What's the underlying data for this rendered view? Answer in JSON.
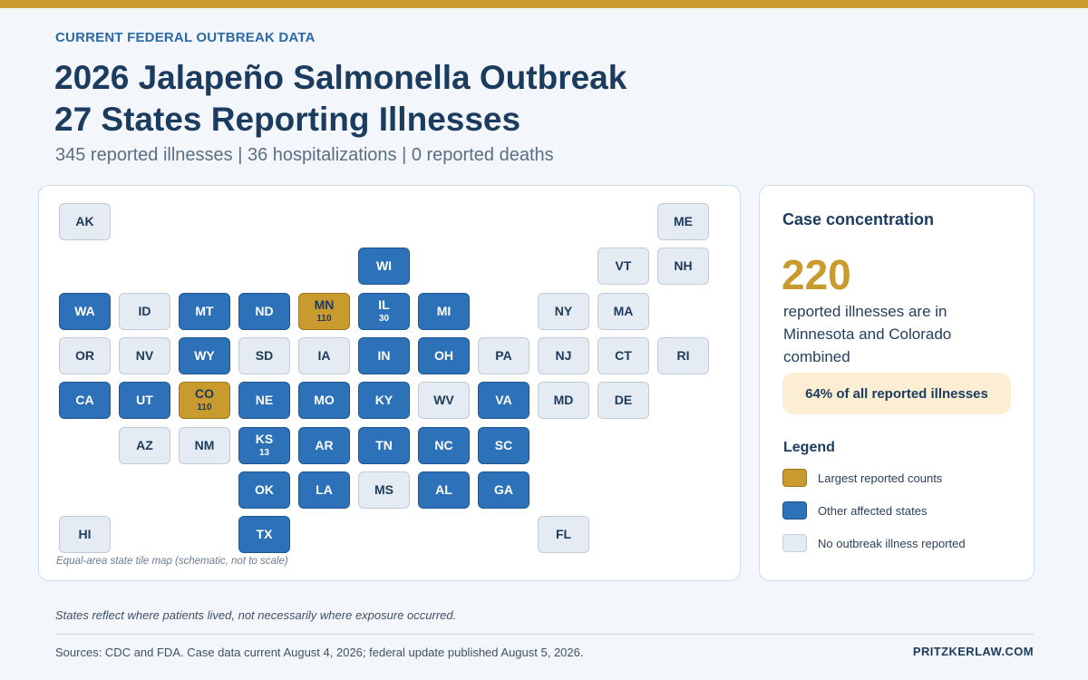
{
  "header": {
    "kicker": "CURRENT FEDERAL OUTBREAK DATA",
    "title_line1": "2026 Jalapeño Salmonella Outbreak",
    "title_line2": "27 States Reporting Illnesses",
    "subtitle": "345 reported illnesses | 36 hospitalizations | 0 reported deaths"
  },
  "colors": {
    "accent_gold": "#c99a2e",
    "affected_blue": "#2d72b8",
    "none_gray": "#e5ebf2"
  },
  "map": {
    "note": "Equal-area state tile map (schematic, not to scale)",
    "states": [
      {
        "abbr": "AK",
        "status": "none",
        "row": 0,
        "col": 0
      },
      {
        "abbr": "ME",
        "status": "none",
        "row": 0,
        "col": 10
      },
      {
        "abbr": "WI",
        "status": "affected",
        "row": 1,
        "col": 5
      },
      {
        "abbr": "VT",
        "status": "none",
        "row": 1,
        "col": 9
      },
      {
        "abbr": "NH",
        "status": "none",
        "row": 1,
        "col": 10
      },
      {
        "abbr": "WA",
        "status": "affected",
        "row": 2,
        "col": 0
      },
      {
        "abbr": "ID",
        "status": "none",
        "row": 2,
        "col": 1
      },
      {
        "abbr": "MT",
        "status": "affected",
        "row": 2,
        "col": 2
      },
      {
        "abbr": "ND",
        "status": "affected",
        "row": 2,
        "col": 3
      },
      {
        "abbr": "MN",
        "status": "largest",
        "row": 2,
        "col": 4,
        "count": "110"
      },
      {
        "abbr": "IL",
        "status": "affected",
        "row": 2,
        "col": 5,
        "count": "30"
      },
      {
        "abbr": "MI",
        "status": "affected",
        "row": 2,
        "col": 6
      },
      {
        "abbr": "NY",
        "status": "none",
        "row": 2,
        "col": 8
      },
      {
        "abbr": "MA",
        "status": "none",
        "row": 2,
        "col": 9
      },
      {
        "abbr": "OR",
        "status": "none",
        "row": 3,
        "col": 0
      },
      {
        "abbr": "NV",
        "status": "none",
        "row": 3,
        "col": 1
      },
      {
        "abbr": "WY",
        "status": "affected",
        "row": 3,
        "col": 2
      },
      {
        "abbr": "SD",
        "status": "none",
        "row": 3,
        "col": 3
      },
      {
        "abbr": "IA",
        "status": "none",
        "row": 3,
        "col": 4
      },
      {
        "abbr": "IN",
        "status": "affected",
        "row": 3,
        "col": 5
      },
      {
        "abbr": "OH",
        "status": "affected",
        "row": 3,
        "col": 6
      },
      {
        "abbr": "PA",
        "status": "none",
        "row": 3,
        "col": 7
      },
      {
        "abbr": "NJ",
        "status": "none",
        "row": 3,
        "col": 8
      },
      {
        "abbr": "CT",
        "status": "none",
        "row": 3,
        "col": 9
      },
      {
        "abbr": "RI",
        "status": "none",
        "row": 3,
        "col": 10
      },
      {
        "abbr": "CA",
        "status": "affected",
        "row": 4,
        "col": 0
      },
      {
        "abbr": "UT",
        "status": "affected",
        "row": 4,
        "col": 1
      },
      {
        "abbr": "CO",
        "status": "largest",
        "row": 4,
        "col": 2,
        "count": "110"
      },
      {
        "abbr": "NE",
        "status": "affected",
        "row": 4,
        "col": 3
      },
      {
        "abbr": "MO",
        "status": "affected",
        "row": 4,
        "col": 4
      },
      {
        "abbr": "KY",
        "status": "affected",
        "row": 4,
        "col": 5
      },
      {
        "abbr": "WV",
        "status": "none",
        "row": 4,
        "col": 6
      },
      {
        "abbr": "VA",
        "status": "affected",
        "row": 4,
        "col": 7
      },
      {
        "abbr": "MD",
        "status": "none",
        "row": 4,
        "col": 8
      },
      {
        "abbr": "DE",
        "status": "none",
        "row": 4,
        "col": 9
      },
      {
        "abbr": "AZ",
        "status": "none",
        "row": 5,
        "col": 1
      },
      {
        "abbr": "NM",
        "status": "none",
        "row": 5,
        "col": 2
      },
      {
        "abbr": "KS",
        "status": "affected",
        "row": 5,
        "col": 3,
        "count": "13"
      },
      {
        "abbr": "AR",
        "status": "affected",
        "row": 5,
        "col": 4
      },
      {
        "abbr": "TN",
        "status": "affected",
        "row": 5,
        "col": 5
      },
      {
        "abbr": "NC",
        "status": "affected",
        "row": 5,
        "col": 6
      },
      {
        "abbr": "SC",
        "status": "affected",
        "row": 5,
        "col": 7
      },
      {
        "abbr": "OK",
        "status": "affected",
        "row": 6,
        "col": 3
      },
      {
        "abbr": "LA",
        "status": "affected",
        "row": 6,
        "col": 4
      },
      {
        "abbr": "MS",
        "status": "none",
        "row": 6,
        "col": 5
      },
      {
        "abbr": "AL",
        "status": "affected",
        "row": 6,
        "col": 6
      },
      {
        "abbr": "GA",
        "status": "affected",
        "row": 6,
        "col": 7
      },
      {
        "abbr": "HI",
        "status": "none",
        "row": 7,
        "col": 0
      },
      {
        "abbr": "TX",
        "status": "affected",
        "row": 7,
        "col": 3
      },
      {
        "abbr": "FL",
        "status": "none",
        "row": 7,
        "col": 8
      }
    ]
  },
  "sidebar": {
    "heading": "Case concentration",
    "big_number": "220",
    "big_caption": "reported illnesses are in Minnesota and Colorado combined",
    "pill": "64% of all reported illnesses",
    "legend_title": "Legend",
    "legend": [
      {
        "key": "largest",
        "label": "Largest reported counts"
      },
      {
        "key": "affected",
        "label": "Other affected states"
      },
      {
        "key": "none",
        "label": "No outbreak illness reported"
      }
    ]
  },
  "footer": {
    "disclaimer": "States reflect where patients lived, not necessarily where exposure occurred.",
    "sources": "Sources: CDC and FDA. Case data current August 4, 2026; federal update published August 5, 2026.",
    "brand": "PRITZKERLAW.COM"
  }
}
